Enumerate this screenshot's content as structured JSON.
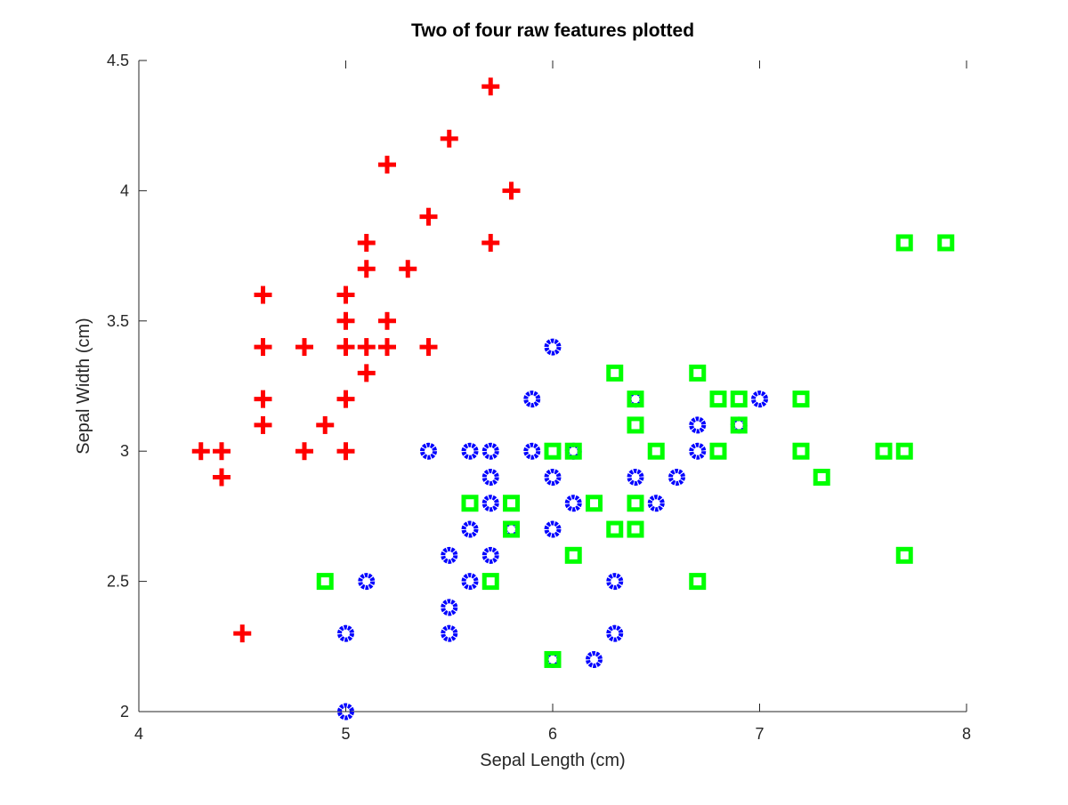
{
  "chart_data": {
    "type": "scatter",
    "title": "Two of four raw features plotted",
    "xlabel": "Sepal Length (cm)",
    "ylabel": "Sepal Width (cm)",
    "xlim": [
      4,
      8
    ],
    "ylim": [
      2,
      4.5
    ],
    "xticks": [
      4,
      5,
      6,
      7,
      8
    ],
    "yticks": [
      2,
      2.5,
      3,
      3.5,
      4,
      4.5
    ],
    "xtick_labels": [
      "4",
      "5",
      "6",
      "7",
      "8"
    ],
    "ytick_labels": [
      "2",
      "2.5",
      "3",
      "3.5",
      "4",
      "4.5"
    ],
    "grid": false,
    "legend": "none",
    "series": [
      {
        "marker": "plus",
        "color": "#ff0000",
        "points": [
          [
            5.7,
            4.4
          ],
          [
            5.5,
            4.2
          ],
          [
            5.2,
            4.1
          ],
          [
            5.8,
            4.0
          ],
          [
            5.4,
            3.9
          ],
          [
            5.1,
            3.8
          ],
          [
            5.7,
            3.8
          ],
          [
            5.1,
            3.7
          ],
          [
            5.3,
            3.7
          ],
          [
            4.6,
            3.6
          ],
          [
            5.0,
            3.6
          ],
          [
            5.0,
            3.5
          ],
          [
            5.2,
            3.5
          ],
          [
            4.6,
            3.4
          ],
          [
            4.8,
            3.4
          ],
          [
            5.0,
            3.4
          ],
          [
            5.1,
            3.4
          ],
          [
            5.2,
            3.4
          ],
          [
            5.4,
            3.4
          ],
          [
            5.1,
            3.3
          ],
          [
            4.6,
            3.2
          ],
          [
            5.0,
            3.2
          ],
          [
            4.6,
            3.1
          ],
          [
            4.9,
            3.1
          ],
          [
            4.3,
            3.0
          ],
          [
            4.4,
            3.0
          ],
          [
            4.8,
            3.0
          ],
          [
            5.0,
            3.0
          ],
          [
            4.4,
            2.9
          ],
          [
            4.5,
            2.3
          ]
        ]
      },
      {
        "marker": "circle",
        "color": "#0000ff",
        "points": [
          [
            6.0,
            3.4
          ],
          [
            5.9,
            3.2
          ],
          [
            6.4,
            3.2
          ],
          [
            7.0,
            3.2
          ],
          [
            6.7,
            3.1
          ],
          [
            6.9,
            3.1
          ],
          [
            5.4,
            3.0
          ],
          [
            5.6,
            3.0
          ],
          [
            5.7,
            3.0
          ],
          [
            5.9,
            3.0
          ],
          [
            6.1,
            3.0
          ],
          [
            6.7,
            3.0
          ],
          [
            5.7,
            2.9
          ],
          [
            6.0,
            2.9
          ],
          [
            6.4,
            2.9
          ],
          [
            6.6,
            2.9
          ],
          [
            5.7,
            2.8
          ],
          [
            6.1,
            2.8
          ],
          [
            6.5,
            2.8
          ],
          [
            5.6,
            2.7
          ],
          [
            5.8,
            2.7
          ],
          [
            6.0,
            2.7
          ],
          [
            5.5,
            2.6
          ],
          [
            5.7,
            2.6
          ],
          [
            5.1,
            2.5
          ],
          [
            5.6,
            2.5
          ],
          [
            6.3,
            2.5
          ],
          [
            5.5,
            2.4
          ],
          [
            5.0,
            2.3
          ],
          [
            5.5,
            2.3
          ],
          [
            6.3,
            2.3
          ],
          [
            6.0,
            2.2
          ],
          [
            6.2,
            2.2
          ],
          [
            5.0,
            2.0
          ]
        ]
      },
      {
        "marker": "square",
        "color": "#00ff00",
        "points": [
          [
            7.7,
            3.8
          ],
          [
            7.9,
            3.8
          ],
          [
            6.3,
            3.3
          ],
          [
            6.7,
            3.3
          ],
          [
            6.4,
            3.2
          ],
          [
            6.8,
            3.2
          ],
          [
            6.9,
            3.2
          ],
          [
            7.2,
            3.2
          ],
          [
            6.4,
            3.1
          ],
          [
            6.9,
            3.1
          ],
          [
            6.0,
            3.0
          ],
          [
            6.1,
            3.0
          ],
          [
            6.5,
            3.0
          ],
          [
            6.8,
            3.0
          ],
          [
            7.2,
            3.0
          ],
          [
            7.6,
            3.0
          ],
          [
            7.7,
            3.0
          ],
          [
            7.3,
            2.9
          ],
          [
            5.6,
            2.8
          ],
          [
            5.8,
            2.8
          ],
          [
            6.2,
            2.8
          ],
          [
            6.4,
            2.8
          ],
          [
            5.8,
            2.7
          ],
          [
            6.3,
            2.7
          ],
          [
            6.4,
            2.7
          ],
          [
            6.1,
            2.6
          ],
          [
            7.7,
            2.6
          ],
          [
            4.9,
            2.5
          ],
          [
            5.7,
            2.5
          ],
          [
            6.7,
            2.5
          ],
          [
            6.0,
            2.2
          ]
        ]
      }
    ]
  }
}
